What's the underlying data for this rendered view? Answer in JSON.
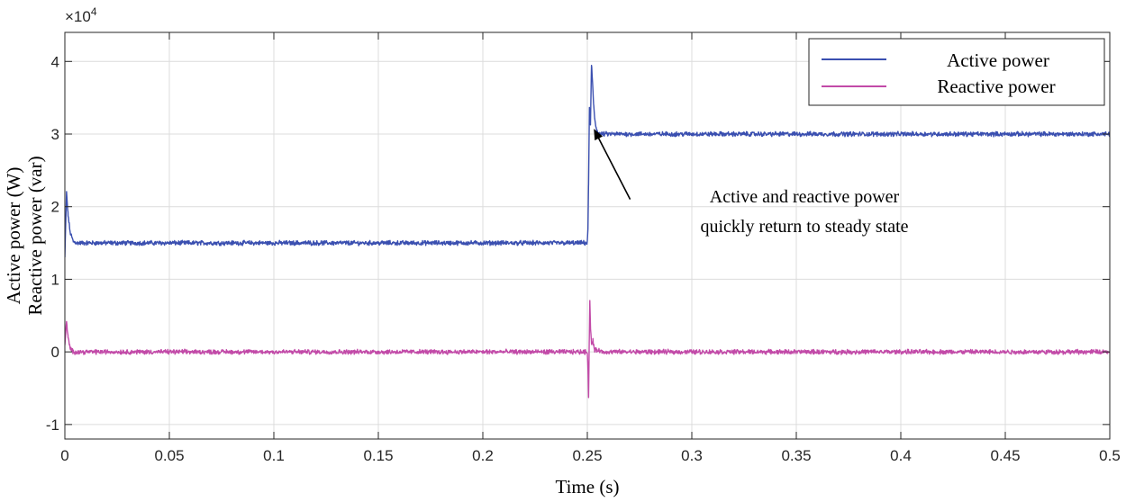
{
  "chart_data": {
    "type": "line",
    "xlabel": "Time (s)",
    "ylabel_lines": [
      "Active power (W)",
      "Reactive power (var)"
    ],
    "y_multiplier": "×10",
    "y_multiplier_exp": "4",
    "xlim": [
      0,
      0.5
    ],
    "ylim": [
      -1.2,
      4.4
    ],
    "x_ticks": [
      0,
      0.05,
      0.1,
      0.15,
      0.2,
      0.25,
      0.3,
      0.35,
      0.4,
      0.45,
      0.5
    ],
    "x_tick_labels": [
      "0",
      "0.05",
      "0.1",
      "0.15",
      "0.2",
      "0.25",
      "0.3",
      "0.35",
      "0.4",
      "0.45",
      "0.5"
    ],
    "y_ticks": [
      -1,
      0,
      1,
      2,
      3,
      4
    ],
    "y_tick_labels": [
      "-1",
      "0",
      "1",
      "2",
      "3",
      "4"
    ],
    "grid": true,
    "legend_position": "top-right",
    "series": [
      {
        "name": "Active power",
        "color": "#3a4fb0",
        "x": [
          0,
          0.0008,
          0.0015,
          0.0025,
          0.004,
          0.006,
          0.01,
          0.25,
          0.2503,
          0.2506,
          0.251,
          0.2515,
          0.252,
          0.2525,
          0.253,
          0.2535,
          0.254,
          0.2545,
          0.255,
          0.256,
          0.258,
          0.26,
          0.5
        ],
        "y": [
          1.3,
          2.2,
          1.9,
          1.65,
          1.52,
          1.5,
          1.5,
          1.5,
          1.7,
          2.3,
          3.37,
          3.1,
          3.97,
          3.7,
          3.4,
          3.22,
          3.12,
          3.06,
          3.03,
          3.0,
          3.0,
          3.0,
          3.0
        ],
        "noise": 0.025
      },
      {
        "name": "Reactive power",
        "color": "#c24aa8",
        "x": [
          0,
          0.0008,
          0.0015,
          0.0025,
          0.004,
          0.006,
          0.25,
          0.2503,
          0.2506,
          0.2509,
          0.2512,
          0.2515,
          0.252,
          0.2527,
          0.2535,
          0.255,
          0.257,
          0.5
        ],
        "y": [
          0.1,
          0.42,
          0.2,
          0.05,
          0.0,
          0.0,
          0.0,
          -0.2,
          -0.63,
          0.1,
          0.73,
          0.35,
          0.1,
          0.15,
          0.02,
          0.03,
          0.0,
          0.0
        ],
        "noise": 0.025
      }
    ],
    "annotation": {
      "lines": [
        "Active and reactive power",
        "quickly return to steady state"
      ],
      "arrow_target": [
        0.2535,
        3.05
      ],
      "arrow_tail": [
        0.2705,
        2.1
      ]
    }
  }
}
